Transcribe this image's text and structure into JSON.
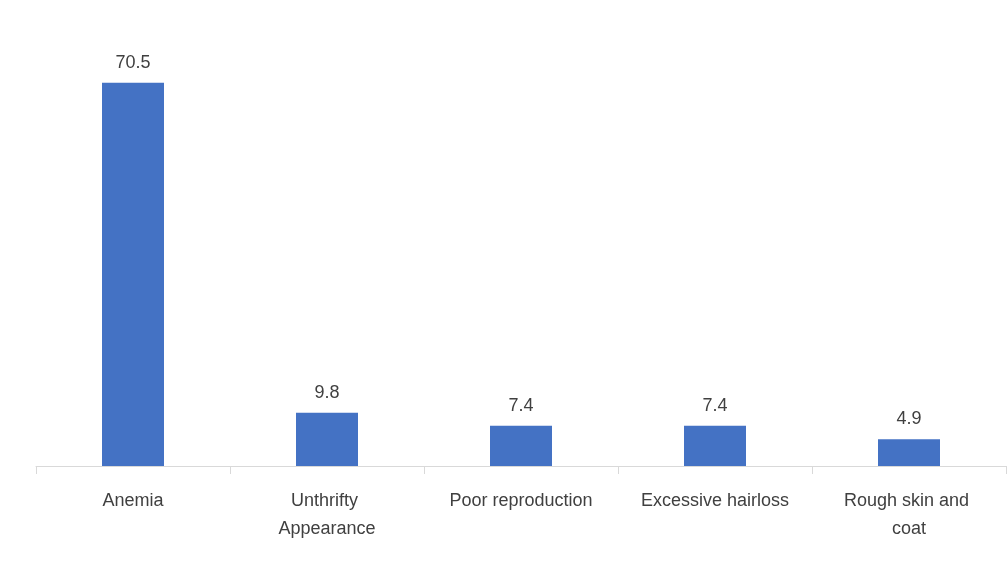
{
  "chart_data": {
    "type": "bar",
    "categories": [
      "Anemia",
      "Unthrifty Appearance",
      "Poor reproduction",
      "Excessive hairloss",
      "Rough skin and coat"
    ],
    "values": [
      70.5,
      9.8,
      7.4,
      7.4,
      4.9
    ],
    "color": "#4472c4",
    "data_labels": true,
    "tick_labels": "x"
  }
}
